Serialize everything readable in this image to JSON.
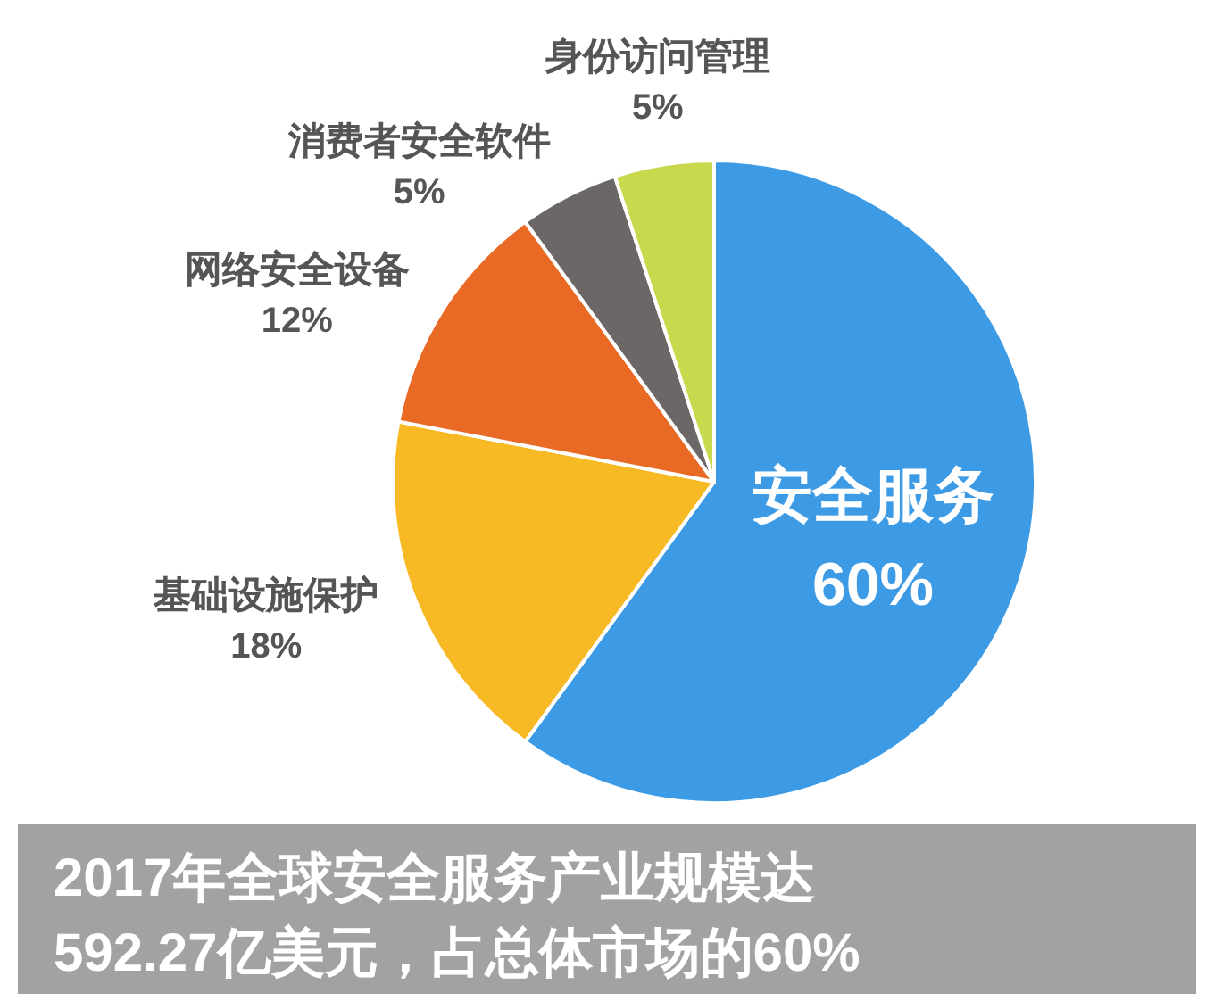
{
  "chart_data": {
    "type": "pie",
    "categories": [
      "安全服务",
      "基础设施保护",
      "网络安全设备",
      "消费者安全软件",
      "身份访问管理"
    ],
    "values": [
      60,
      18,
      12,
      5,
      5
    ],
    "value_labels": [
      "60%",
      "18%",
      "12%",
      "5%",
      "5%"
    ],
    "colors": [
      "#3d9be6",
      "#f7b924",
      "#e96a25",
      "#6b6767",
      "#c8d94e"
    ],
    "annotations": [
      "2017年全球安全服务产业规模达",
      "592.27亿美元，占总体市场的60%"
    ]
  }
}
